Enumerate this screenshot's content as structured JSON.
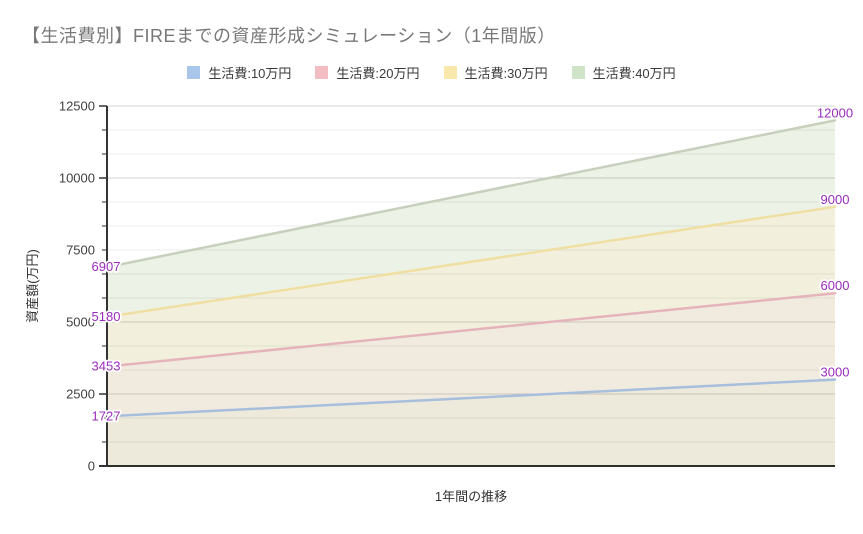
{
  "title": "【生活費別】FIREまでの資産形成シミュレーション（1年間版）",
  "chart_data": {
    "type": "area",
    "title": "【生活費別】FIREまでの資産形成シミュレーション（1年間版）",
    "xlabel": "1年間の推移",
    "ylabel": "資産額(万円)",
    "x": [
      0,
      1
    ],
    "ylim": [
      0,
      12500
    ],
    "y_major_ticks": [
      12500,
      10000,
      7500,
      5000,
      2500,
      0
    ],
    "y_minor_divisions_per_major": 3,
    "grid": "on",
    "legend_position": "top",
    "series": [
      {
        "name": "生活費:10万円",
        "values": [
          1727,
          3000
        ],
        "line_color": "#a7bedd",
        "swatch_color": "#a9c6ea",
        "band_color": "#edeadb"
      },
      {
        "name": "生活費:20万円",
        "values": [
          3453,
          6000
        ],
        "line_color": "#e5b4ba",
        "swatch_color": "#f3bdc4",
        "band_color": "#f1ebdf"
      },
      {
        "name": "生活費:30万円",
        "values": [
          5180,
          9000
        ],
        "line_color": "#f0dfa2",
        "swatch_color": "#f9e8ab",
        "band_color": "#f2f0dd"
      },
      {
        "name": "生活費:40万円",
        "values": [
          6907,
          12000
        ],
        "line_color": "#c6d0bd",
        "swatch_color": "#cfe3c8",
        "band_color": "#ecf2e6"
      }
    ],
    "annotations": {
      "left": [
        "1727",
        "3453",
        "5180",
        "6907"
      ],
      "right": [
        "3000",
        "6000",
        "9000",
        "12000"
      ]
    }
  },
  "colors": {
    "title_text": "#787878",
    "legend_text": "#3a3a3a",
    "tick_label": "#404040",
    "axis_line": "#333333",
    "grid_major": "rgba(0,0,0,0.16)",
    "grid_minor": "rgba(0,0,0,0.07)",
    "annotation_text": "#9a2cba"
  }
}
